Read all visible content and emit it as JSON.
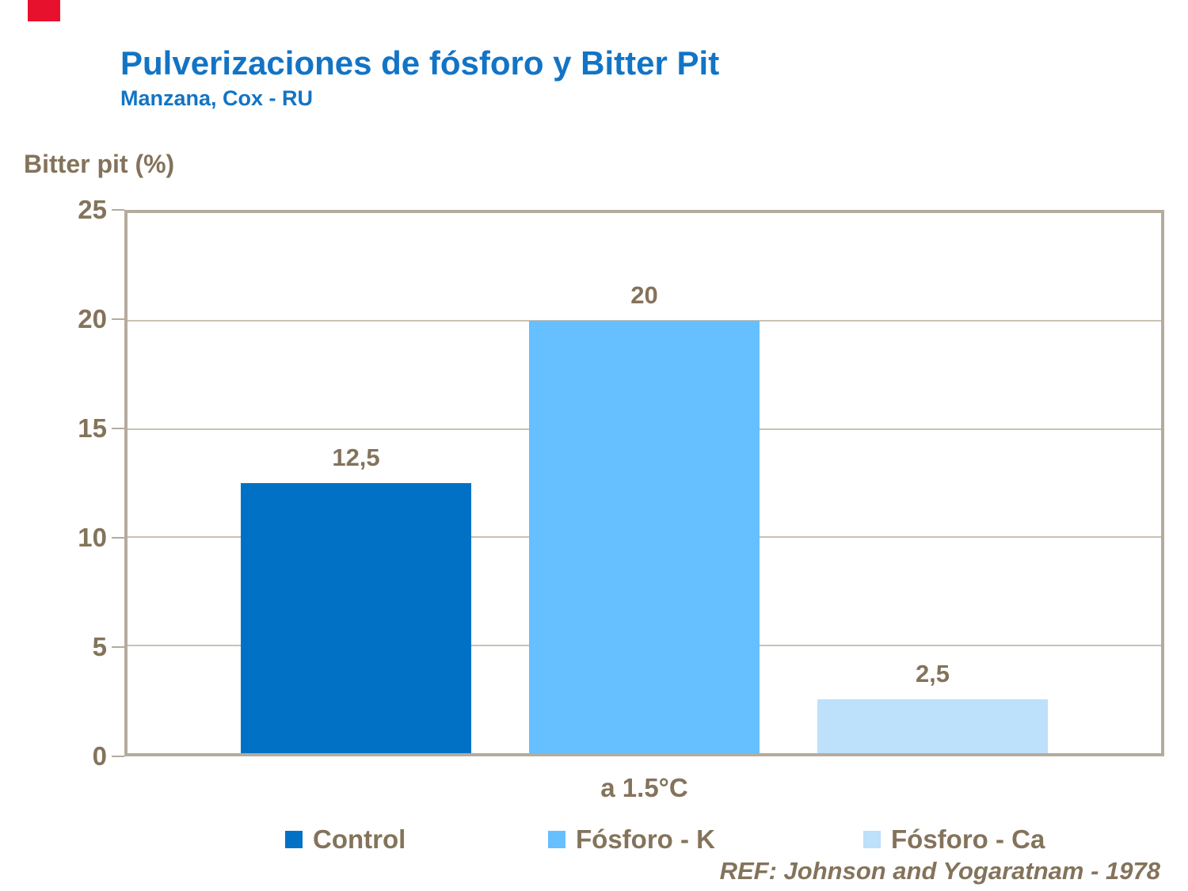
{
  "slide": {
    "title": "Pulverizaciones de fósforo y Bitter Pit",
    "subtitle": "Manzana, Cox - RU",
    "reference": "REF: Johnson and Yogaratnam - 1978"
  },
  "theme": {
    "title_color": "#1274C5",
    "text_color": "#84735B",
    "grid_color": "#C9C1B2",
    "axis_border_color": "#B5AB9C",
    "accent_red": "#E8112D"
  },
  "chart_data": {
    "type": "bar",
    "title": "Pulverizaciones de fósforo y Bitter Pit",
    "subtitle": "Manzana, Cox - RU",
    "ylabel": "Bitter pit (%)",
    "xlabel": "",
    "categories": [
      "a 1.5°C"
    ],
    "series": [
      {
        "name": "Control",
        "values": [
          12.5
        ],
        "data_label": "12,5",
        "color": "#0071C5"
      },
      {
        "name": "Fósforo - K",
        "values": [
          20
        ],
        "data_label": "20",
        "color": "#66BFFF"
      },
      {
        "name": "Fósforo - Ca",
        "values": [
          2.5
        ],
        "data_label": "2,5",
        "color": "#BDE0FB"
      }
    ],
    "ylim": [
      0,
      25
    ],
    "yticks": [
      0,
      5,
      10,
      15,
      20,
      25
    ],
    "grid": true,
    "legend_position": "bottom"
  }
}
